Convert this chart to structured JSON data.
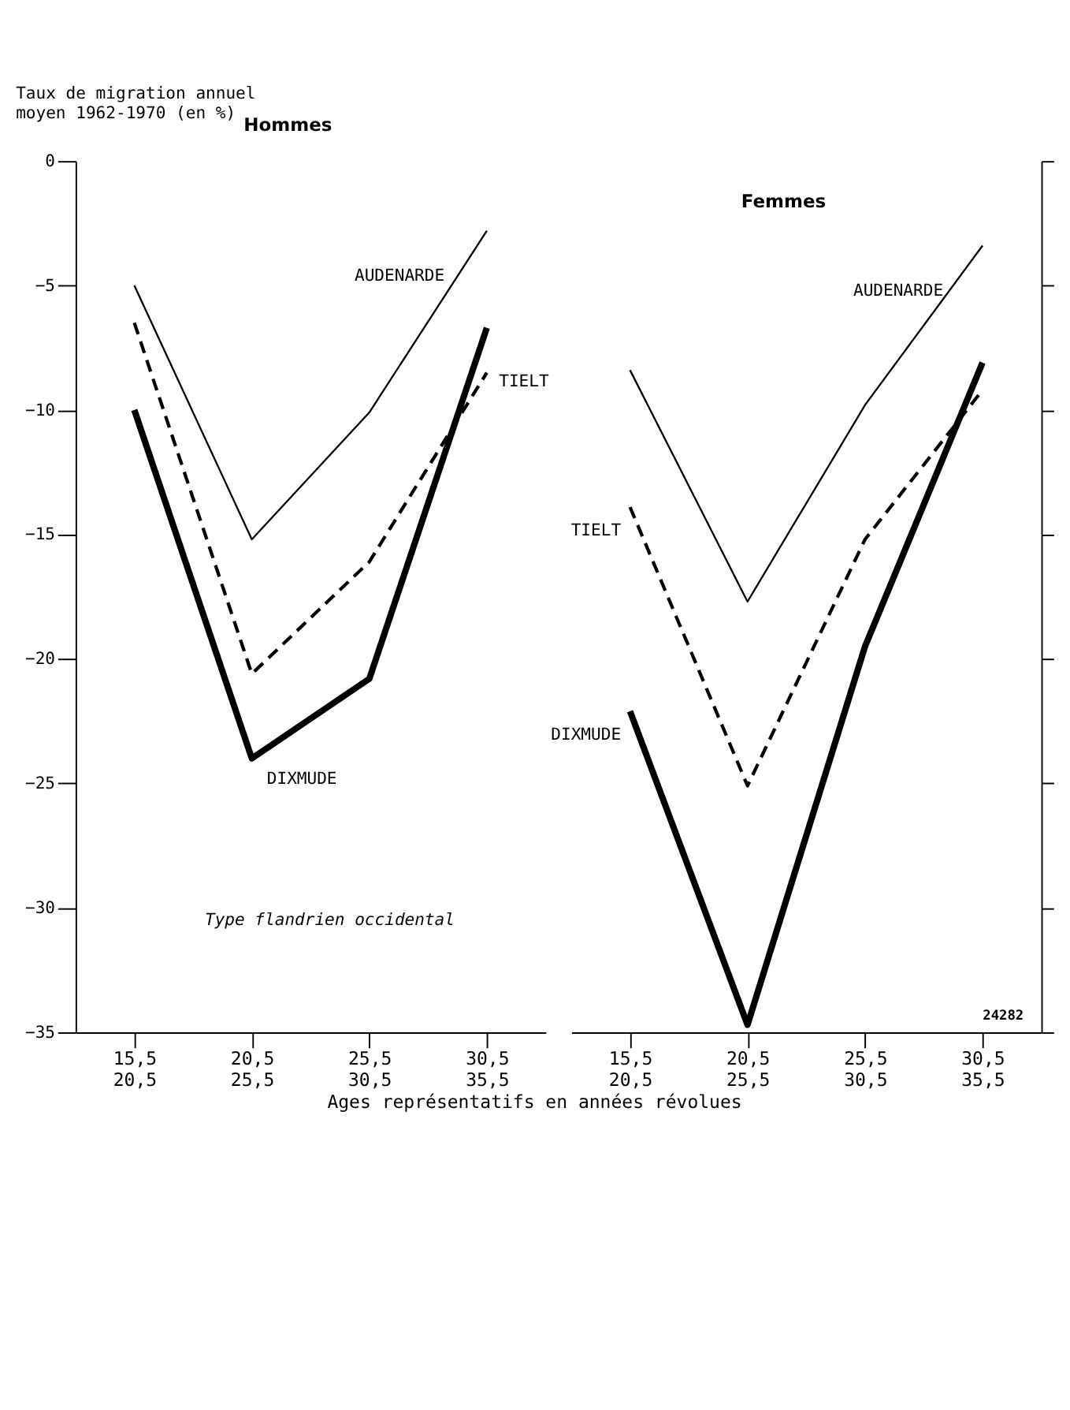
{
  "chart_data": [
    {
      "type": "line",
      "title": "Hommes",
      "ylabel": "Taux de migration annuel\nmoyen 1962-1970 (en %)",
      "xlabel": "Ages représentatifs en années révolues",
      "categories": [
        "15,5\n20,5",
        "20,5\n25,5",
        "25,5\n30,5",
        "30,5\n35,5"
      ],
      "series": [
        {
          "name": "AUDENARDE",
          "color": "#000000",
          "line_style": "solid",
          "values": [
            -5,
            -15.2,
            -10.1,
            -2.8
          ]
        },
        {
          "name": "TIELT",
          "color": "#000000",
          "line_style": "dashed",
          "values": [
            -6.5,
            -20.6,
            -16.1,
            -8.5
          ]
        },
        {
          "name": "DIXMUDE",
          "color": "#000000",
          "line_style": "solid",
          "values": [
            -10,
            -24.0,
            -20.8,
            -6.7
          ]
        }
      ],
      "ylim": [
        -35,
        0
      ],
      "yticks": [
        0,
        -5,
        -10,
        -15,
        -20,
        -25,
        -30,
        -35
      ],
      "annotations": [
        "Type flandrien occidental"
      ]
    },
    {
      "type": "line",
      "title": "Femmes",
      "categories": [
        "15,5\n20,5",
        "20,5\n25,5",
        "25,5\n30,5",
        "30,5\n35,5"
      ],
      "series": [
        {
          "name": "AUDENARDE",
          "color": "#000000",
          "line_style": "solid",
          "values": [
            -8.4,
            -17.7,
            -9.8,
            -3.4
          ]
        },
        {
          "name": "TIELT",
          "color": "#000000",
          "line_style": "dashed",
          "values": [
            -13.9,
            -25.1,
            -15.2,
            -9.2
          ]
        },
        {
          "name": "DIXMUDE",
          "color": "#000000",
          "line_style": "solid",
          "values": [
            -22.1,
            -34.7,
            -19.5,
            -8.1
          ]
        }
      ],
      "ylim": [
        -35,
        0
      ],
      "yticks": [
        0,
        -5,
        -10,
        -15,
        -20,
        -25,
        -30,
        -35
      ],
      "tick_labels": "x",
      "annotations": [
        "24282"
      ]
    }
  ]
}
